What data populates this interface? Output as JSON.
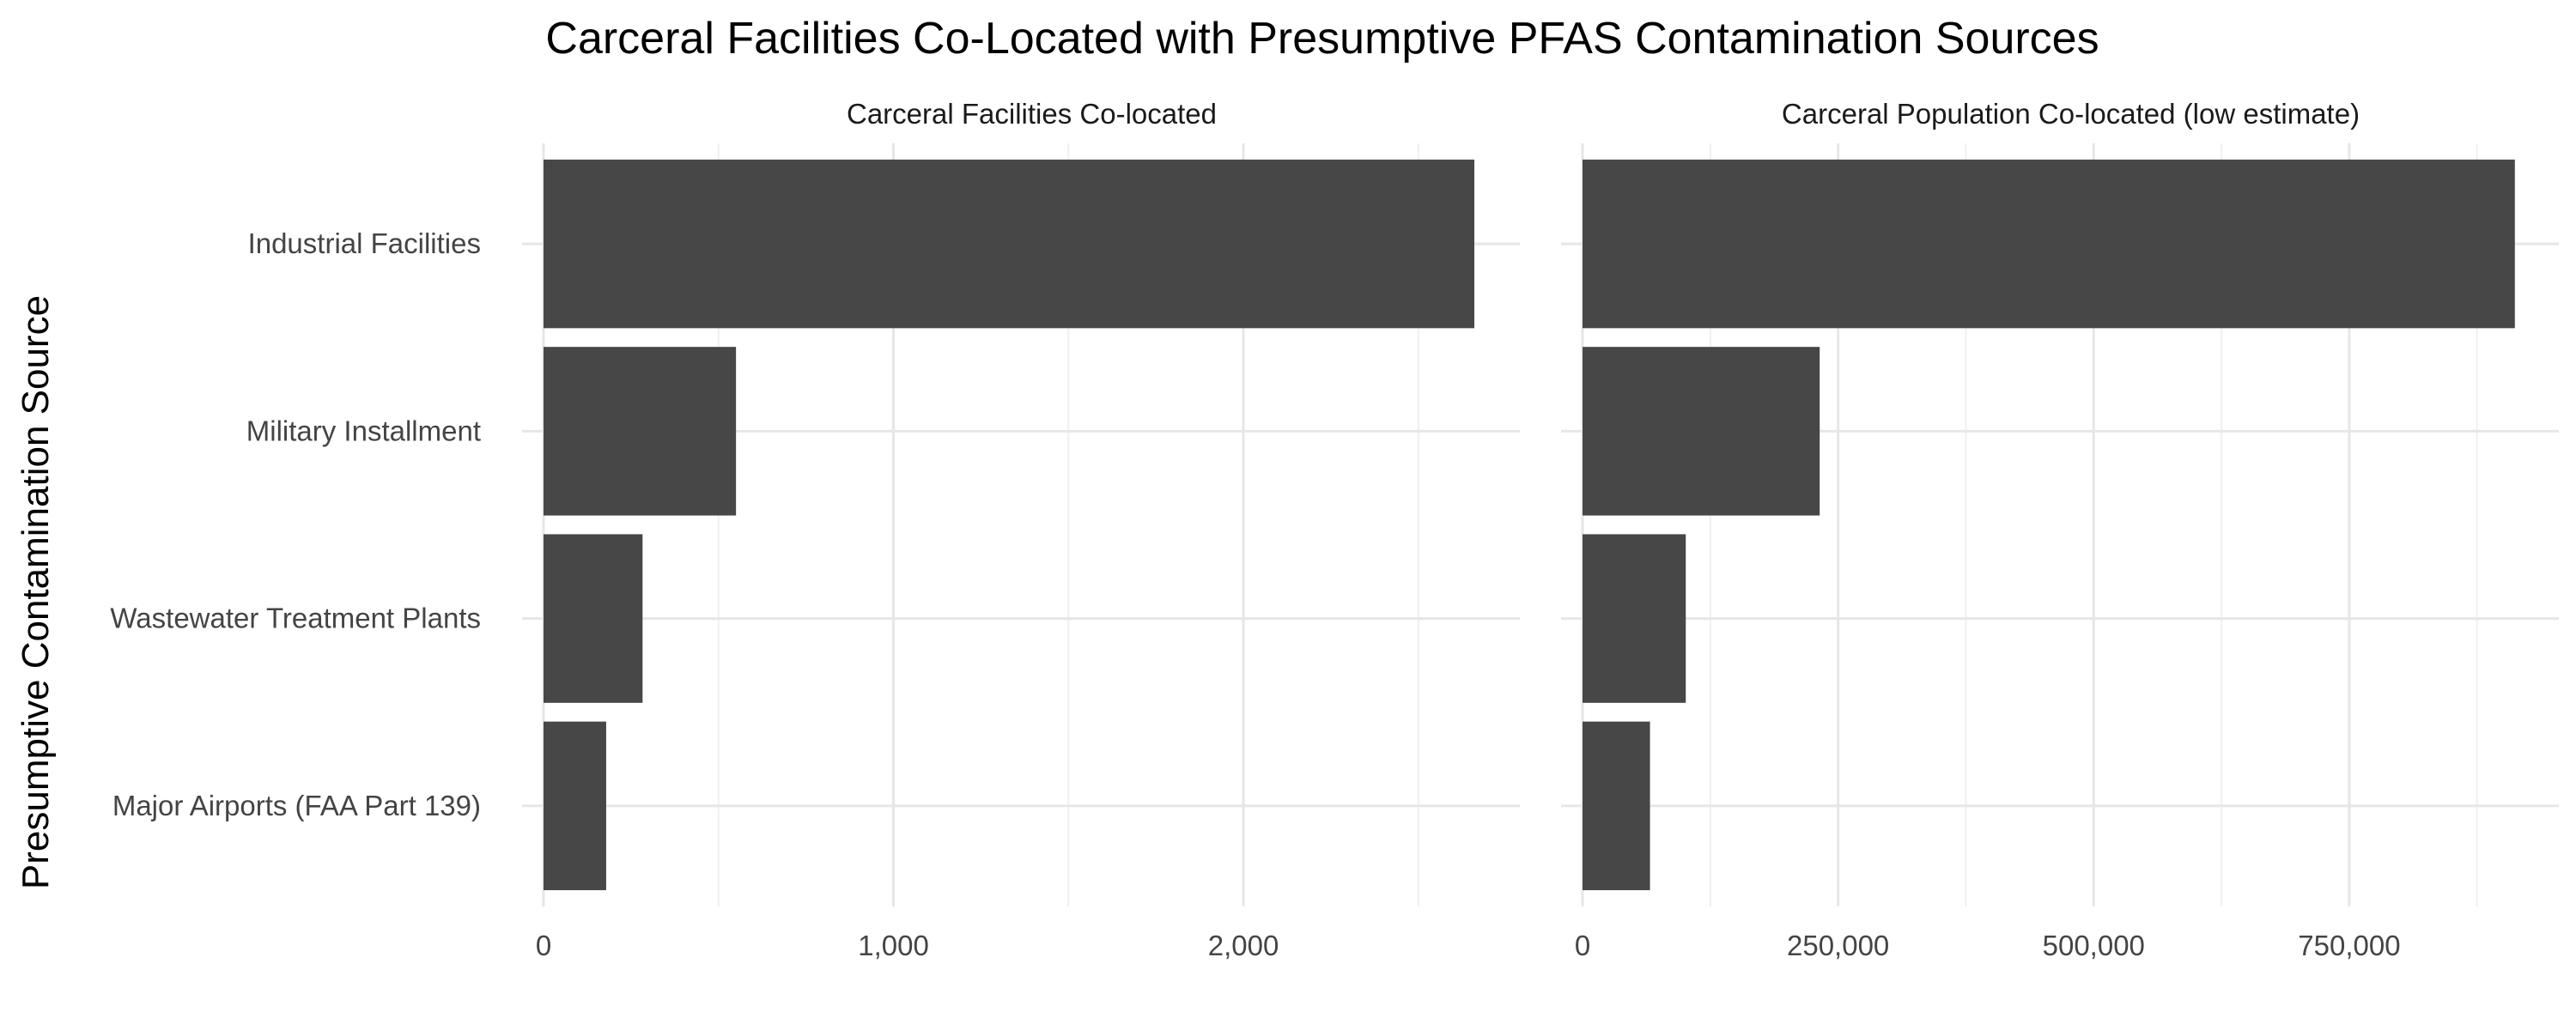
{
  "chart_data": {
    "type": "bar",
    "orientation": "horizontal",
    "title": "Carceral Facilities Co-Located with Presumptive PFAS Contamination Sources",
    "ylabel": "Presumptive Contamination Source",
    "xlabel": "",
    "categories": [
      "Industrial Facilities",
      "Military Installment",
      "Wastewater Treatment Plants",
      "Major Airports (FAA Part 139)"
    ],
    "bar_color": "#474747",
    "grid": true,
    "legend": "none",
    "panels": [
      {
        "title": "Carceral Facilities Co-located",
        "values": [
          2660,
          550,
          283,
          179
        ],
        "xlim": [
          0,
          2790
        ],
        "ticks": [
          0,
          1000,
          2000
        ],
        "tick_labels": [
          "0",
          "1,000",
          "2,000"
        ]
      },
      {
        "title": "Carceral Population Co-located (low estimate)",
        "values": [
          912000,
          232000,
          101000,
          66000
        ],
        "xlim": [
          0,
          955000
        ],
        "ticks": [
          0,
          250000,
          500000,
          750000
        ],
        "tick_labels": [
          "0",
          "250,000",
          "500,000",
          "750,000"
        ]
      }
    ]
  }
}
